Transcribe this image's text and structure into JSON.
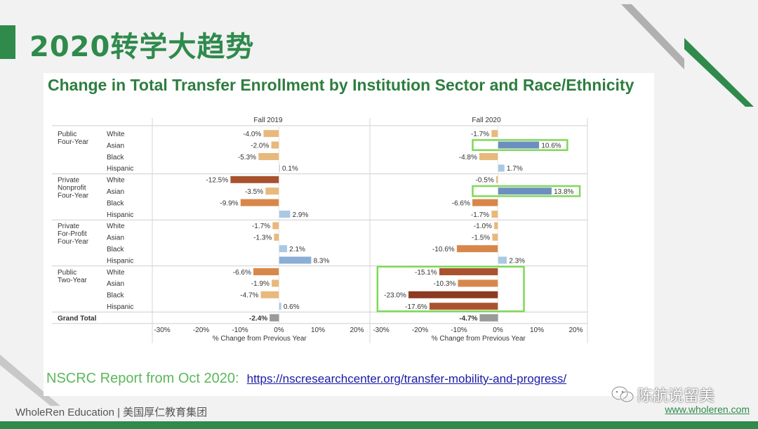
{
  "slide": {
    "title": "2020转学大趋势",
    "footer_left": "WholeRen Education | 美国厚仁教育集团",
    "footer_url": "www.wholeren.com",
    "watermark": "陈航说留美",
    "accent_color": "#2f8a4c"
  },
  "source": {
    "label": "NSCRC Report from Oct 2020:",
    "link": "https://nscresearchcenter.org/transfer-mobility-and-progress/"
  },
  "chart_data": {
    "type": "bar",
    "orientation": "horizontal",
    "title": "Change in Total Transfer Enrollment by Institution Sector and Race/Ethnicity",
    "panels": [
      "Fall 2019",
      "Fall 2020"
    ],
    "xlabel": "% Change from Previous Year",
    "xlim": [
      -30,
      20
    ],
    "xticks": [
      "-30%",
      "-20%",
      "-10%",
      "0%",
      "10%",
      "20%"
    ],
    "groups": [
      {
        "label": [
          "Public",
          "Four-Year"
        ],
        "categories": [
          "White",
          "Asian",
          "Black",
          "Hispanic"
        ]
      },
      {
        "label": [
          "Private",
          "Nonprofit",
          "Four-Year"
        ],
        "categories": [
          "White",
          "Asian",
          "Black",
          "Hispanic"
        ]
      },
      {
        "label": [
          "Private",
          "For-Profit",
          "Four-Year"
        ],
        "categories": [
          "White",
          "Asian",
          "Black",
          "Hispanic"
        ]
      },
      {
        "label": [
          "Public",
          "Two-Year"
        ],
        "categories": [
          "White",
          "Asian",
          "Black",
          "Hispanic"
        ]
      }
    ],
    "grand_total_label": "Grand Total",
    "series": [
      {
        "name": "Fall 2019",
        "values": [
          -4.0,
          -2.0,
          -5.3,
          0.1,
          -12.5,
          -3.5,
          -9.9,
          2.9,
          -1.7,
          -1.3,
          2.1,
          8.3,
          -6.6,
          -1.9,
          -4.7,
          0.6
        ],
        "labels": [
          "-4.0%",
          "-2.0%",
          "-5.3%",
          "0.1%",
          "-12.5%",
          "-3.5%",
          "-9.9%",
          "2.9%",
          "-1.7%",
          "-1.3%",
          "2.1%",
          "8.3%",
          "-6.6%",
          "-1.9%",
          "-4.7%",
          "0.6%"
        ],
        "grand_total": -2.4,
        "grand_total_label": "-2.4%"
      },
      {
        "name": "Fall 2020",
        "values": [
          -1.7,
          10.6,
          -4.8,
          1.7,
          -0.5,
          13.8,
          -6.6,
          -1.7,
          -1.0,
          -1.5,
          -10.6,
          2.3,
          -15.1,
          -10.3,
          -23.0,
          -17.6
        ],
        "labels": [
          "-1.7%",
          "10.6%",
          "-4.8%",
          "1.7%",
          "-0.5%",
          "13.8%",
          "-6.6%",
          "-1.7%",
          "-1.0%",
          "-1.5%",
          "-10.6%",
          "2.3%",
          "-15.1%",
          "-10.3%",
          "-23.0%",
          "-17.6%"
        ],
        "grand_total": -4.7,
        "grand_total_label": "-4.7%"
      }
    ],
    "colors": {
      "neg_light": "#e8b97c",
      "neg_mid": "#d8874a",
      "neg_dark": "#a8532e",
      "neg_darkest": "#8c3b22",
      "pos_light": "#aac8e3",
      "pos_mid": "#8aaed6",
      "pos_dark": "#6d8fc0",
      "grand_total": "#9a9a9a",
      "highlight": "#7ed957"
    },
    "highlights": {
      "Fall 2020": [
        [
          1,
          1
        ],
        [
          5,
          5
        ],
        [
          12,
          15
        ]
      ]
    }
  }
}
